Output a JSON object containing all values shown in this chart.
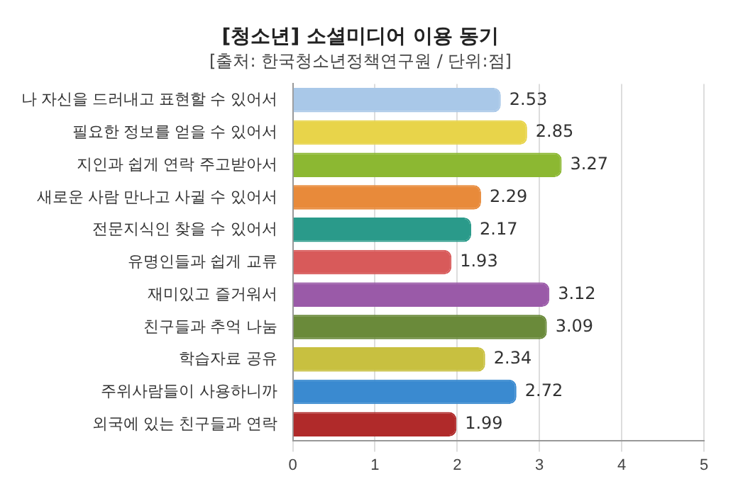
{
  "chart_data": {
    "type": "bar",
    "orientation": "horizontal",
    "title": "[청소년] 소셜미디어 이용 동기",
    "subtitle": "[출처: 한국청소년정책연구원 / 단위:점]",
    "categories": [
      "나 자신을 드러내고 표현할 수 있어서",
      "필요한 정보를 얻을 수 있어서",
      "지인과 쉽게 연락 주고받아서",
      "새로운 사람 만나고 사귈 수 있어서",
      "전문지식인 찾을 수 있어서",
      "유명인들과 쉽게 교류",
      "재미있고 즐거워서",
      "친구들과 추억 나눔",
      "학습자료 공유",
      "주위사람들이 사용하니까",
      "외국에 있는 친구들과 연락"
    ],
    "values": [
      2.53,
      2.85,
      3.27,
      2.29,
      2.17,
      1.93,
      3.12,
      3.09,
      2.34,
      2.72,
      1.99
    ],
    "colors": [
      "#a9c8e8",
      "#e8d44a",
      "#8cb832",
      "#e88a3a",
      "#2a9a8a",
      "#d85a5a",
      "#9a5aa8",
      "#6a8a3a",
      "#c8c040",
      "#3a8ad0",
      "#b02a2a"
    ],
    "xlim": [
      0,
      5
    ],
    "xticks": [
      0,
      1,
      2,
      3,
      4,
      5
    ],
    "grid": "x",
    "data_labels": true
  }
}
